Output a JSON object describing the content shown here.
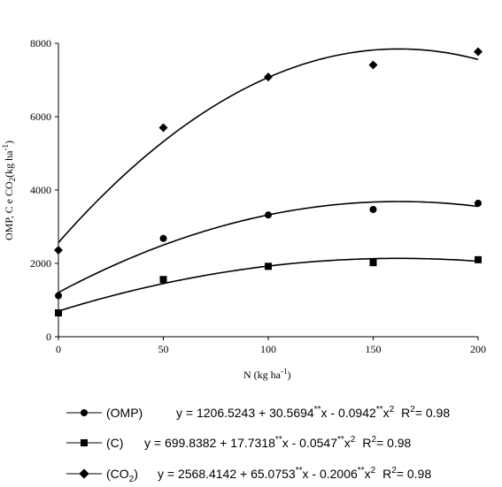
{
  "chart_data": {
    "type": "scatter",
    "title": "",
    "xlabel": "N (kg ha⁻¹)",
    "ylabel": "OMP, C e CO₂ (kg ha⁻¹)",
    "xlim": [
      0,
      200
    ],
    "ylim": [
      0,
      8000
    ],
    "xticks": [
      0,
      50,
      100,
      150,
      200
    ],
    "yticks": [
      0,
      2000,
      4000,
      6000,
      8000
    ],
    "x_tick_labels": [
      "0",
      "50",
      "100",
      "150",
      "200"
    ],
    "y_tick_labels": [
      "0",
      "2000",
      "4000",
      "6000",
      "8000"
    ],
    "grid": false,
    "legend_position": "bottom",
    "series": [
      {
        "name": "(OMP)",
        "marker": "circle",
        "x": [
          0,
          50,
          100,
          150,
          200
        ],
        "values": [
          1120,
          2680,
          3320,
          3470,
          3640
        ],
        "fit": {
          "intercept": 1206.5243,
          "b1": 30.5694,
          "b2": -0.0942
        },
        "equation": "y = 1206.5243 + 30.5694**x - 0.0942**x2  R2 = 0.98"
      },
      {
        "name": "(C)",
        "marker": "square",
        "x": [
          0,
          50,
          100,
          150,
          200
        ],
        "values": [
          650,
          1560,
          1920,
          2020,
          2100
        ],
        "fit": {
          "intercept": 699.8382,
          "b1": 17.7318,
          "b2": -0.0547
        },
        "equation": "y = 699.8382 + 17.7318**x - 0.0547**x2  R2 = 0.98"
      },
      {
        "name": "(CO2)",
        "marker": "diamond",
        "x": [
          0,
          50,
          100,
          150,
          200
        ],
        "values": [
          2360,
          5700,
          7080,
          7410,
          7770
        ],
        "fit": {
          "intercept": 2568.4142,
          "b1": 65.0753,
          "b2": -0.2006
        },
        "equation": "y = 2568.4142 + 65.0753**x - 0.2006**x2  R2 = 0.98"
      }
    ]
  },
  "legend": [
    {
      "label": "(OMP)",
      "eq_main": "y = 1206.5243 + 30.5694",
      "sup1": "**",
      "eq_mid": "x - 0.0942",
      "sup2": "**",
      "eq_x": "x",
      "sup3": "2",
      "r2": "R",
      "r2sup": "2",
      "r2val": "= 0.98"
    },
    {
      "label": "(C)",
      "eq_main": "y = 699.8382 + 17.7318",
      "sup1": "**",
      "eq_mid": "x - 0.0547",
      "sup2": "**",
      "eq_x": "x",
      "sup3": "2",
      "r2": "R",
      "r2sup": "2",
      "r2val": "= 0.98"
    },
    {
      "label": "(CO",
      "labelsub": "2",
      "labelend": ")",
      "eq_main": "y = 2568.4142 + 65.0753",
      "sup1": "**",
      "eq_mid": "x - 0.2006",
      "sup2": "**",
      "eq_x": "x",
      "sup3": "2",
      "r2": "R",
      "r2sup": "2",
      "r2val": "= 0.98"
    }
  ],
  "axis_text": {
    "y_main": "OMP, C e CO",
    "y_sub": "2",
    "y_mid": "(kg ha",
    "y_sup": "-1",
    "y_end": ")",
    "x_main": "N (kg ha",
    "x_sup": "-1",
    "x_end": ")"
  }
}
